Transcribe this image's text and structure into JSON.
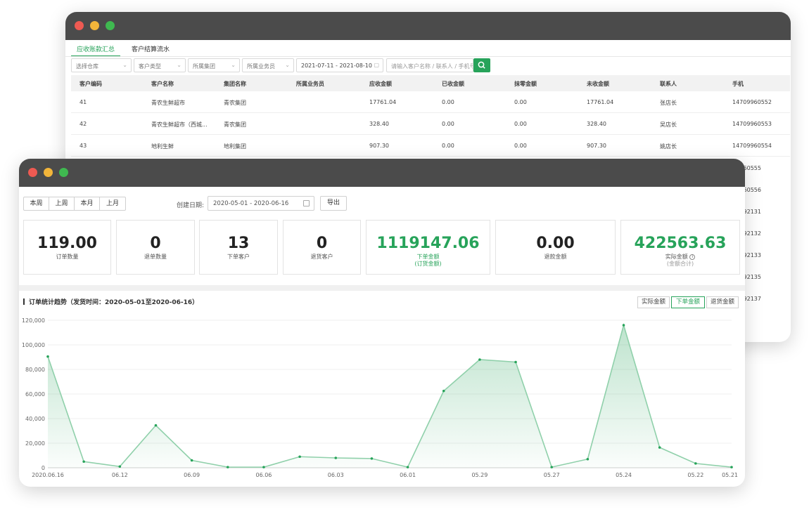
{
  "colors": {
    "accent": "#27a35a",
    "titlebar": "#4b4b4b"
  },
  "back_window": {
    "tabs": [
      "应收账款汇总",
      "客户结算流水"
    ],
    "filters": {
      "warehouse": "选择仓库",
      "customer_type": "客户类型",
      "group": "所属集团",
      "salesman": "所属业务员",
      "date_range": "2021-07-11 - 2021-08-10",
      "search_placeholder": "请输入客户名称 / 联系人 / 手机号"
    },
    "columns": [
      "客户编码",
      "客户名称",
      "集团名称",
      "所属业务员",
      "应收金额",
      "已收金额",
      "抹零金额",
      "未收金额",
      "联系人",
      "手机"
    ],
    "rows": [
      [
        "41",
        "青农生鲜超市",
        "青农集团",
        "",
        "17761.04",
        "0.00",
        "0.00",
        "17761.04",
        "张店长",
        "14709960552"
      ],
      [
        "42",
        "青农生鲜超市（西城...",
        "青农集团",
        "",
        "328.40",
        "0.00",
        "0.00",
        "328.40",
        "吴店长",
        "14709960553"
      ],
      [
        "43",
        "地利生鲜",
        "地利集团",
        "",
        "907.30",
        "0.00",
        "0.00",
        "907.30",
        "姚店长",
        "14709960554"
      ]
    ],
    "hidden_phone_fragments": [
      "9960555",
      "9960556",
      "7592131",
      "7592132",
      "7592133",
      "7592135",
      "7592137"
    ]
  },
  "front_window": {
    "period_buttons": [
      "本周",
      "上周",
      "本月",
      "上月"
    ],
    "date_label": "创建日期:",
    "date_range": "2020-05-01 - 2020-06-16",
    "export_label": "导出",
    "stats": [
      {
        "value": "119.00",
        "label": "订单数量"
      },
      {
        "value": "0",
        "label": "退单数量"
      },
      {
        "value": "13",
        "label": "下单客户"
      },
      {
        "value": "0",
        "label": "退货客户"
      },
      {
        "value": "1119147.06",
        "label": "下单金额",
        "sub": "(订货金额)"
      },
      {
        "value": "0.00",
        "label": "退款金额"
      },
      {
        "value": "422563.63",
        "label": "实际金额",
        "sub": "(金额合计)"
      }
    ],
    "chart_title": "订单统计趋势（发货时间：2020-05-01至2020-06-16）",
    "toggles": [
      "实际金额",
      "下单金额",
      "退货金额"
    ],
    "active_toggle": "下单金额"
  },
  "chart_data": {
    "type": "area",
    "x": [
      "2020.06.16",
      "06.14",
      "06.12",
      "06.11",
      "06.09",
      "06.08",
      "06.06",
      "06.05",
      "06.03",
      "06.02",
      "06.01",
      "05.30",
      "05.29",
      "05.28",
      "05.27",
      "05.26",
      "05.24",
      "05.23",
      "05.22",
      "05.21"
    ],
    "x_tick_labels": [
      "2020.06.16",
      "06.12",
      "06.09",
      "06.06",
      "06.03",
      "06.01",
      "05.29",
      "05.27",
      "05.24",
      "05.22",
      "05.21"
    ],
    "series": [
      {
        "values": [
          90500,
          5000,
          1000,
          34500,
          6000,
          500,
          500,
          9000,
          8000,
          7500,
          500,
          62500,
          88000,
          86000,
          500,
          7000,
          116000,
          16500,
          3500,
          500
        ]
      }
    ],
    "y_ticks": [
      "0",
      "20,000",
      "40,000",
      "60,000",
      "80,000",
      "100,000",
      "120,000"
    ],
    "ylim": [
      0,
      120000
    ],
    "grid": true,
    "color": "#27a35a"
  }
}
